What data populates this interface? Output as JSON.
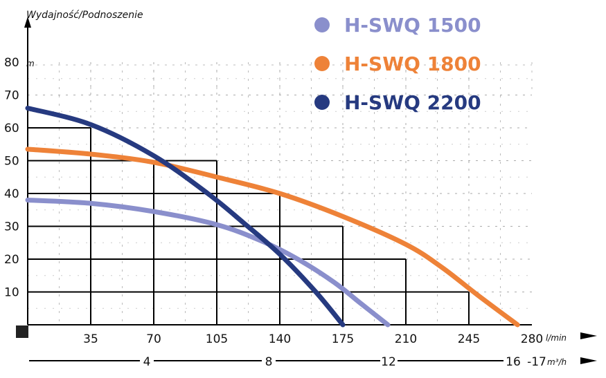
{
  "chart_data": {
    "type": "line",
    "ytitle": "Wydajność/Podnoszenie",
    "yunit": "m",
    "xunit": "l/min",
    "x2unit": "m³/h",
    "ylim": [
      0,
      80
    ],
    "xlim": [
      0,
      280
    ],
    "y_ticks": [
      "10",
      "20",
      "30",
      "40",
      "50",
      "60",
      "70",
      "80"
    ],
    "x_ticks": [
      "35",
      "70",
      "105",
      "140",
      "175",
      "210",
      "245",
      "280"
    ],
    "x2_ticks": [
      "4",
      "8",
      "12",
      "16",
      "17"
    ],
    "grid": true,
    "legend_position": "top-right",
    "series": [
      {
        "name": "H-SWQ 1500",
        "color": "#8a8fcc",
        "x": [
          0,
          35,
          70,
          105,
          130,
          150,
          170,
          185,
          200
        ],
        "y": [
          38,
          37,
          34.5,
          30.5,
          25.5,
          20,
          13,
          6.5,
          0
        ]
      },
      {
        "name": "H-SWQ 1800",
        "color": "#ee8238",
        "x": [
          0,
          35,
          70,
          105,
          140,
          175,
          210,
          230,
          250,
          272
        ],
        "y": [
          53.5,
          52,
          49.5,
          45,
          40,
          33,
          24.5,
          17.5,
          9,
          0
        ]
      },
      {
        "name": "H-SWQ 2200",
        "color": "#263a80",
        "x": [
          0,
          35,
          70,
          100,
          120,
          140,
          160,
          175
        ],
        "y": [
          66,
          61,
          51.5,
          40,
          31,
          21.5,
          10,
          0
        ]
      }
    ]
  }
}
